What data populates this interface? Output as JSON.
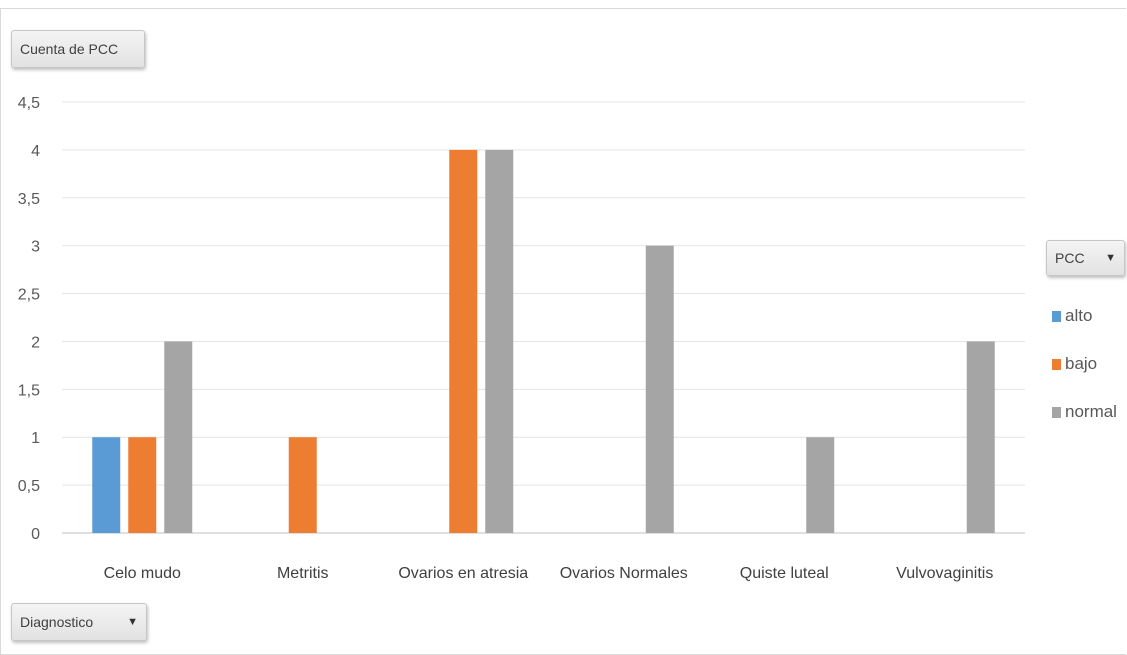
{
  "value_field": {
    "label": "Cuenta de PCC"
  },
  "axis_field": {
    "label": "Diagnostico",
    "caret": "▼"
  },
  "legend_field": {
    "label": "PCC",
    "caret": "▼"
  },
  "legend": [
    {
      "label": "alto",
      "color": "#5b9bd5"
    },
    {
      "label": "bajo",
      "color": "#ed7d31"
    },
    {
      "label": "normal",
      "color": "#a5a5a5"
    }
  ],
  "chart_data": {
    "type": "bar",
    "categories": [
      "Celo mudo",
      "Metritis",
      "Ovarios en atresia",
      "Ovarios Normales",
      "Quiste luteal",
      "Vulvovaginitis"
    ],
    "series": [
      {
        "name": "alto",
        "values": [
          1,
          null,
          null,
          null,
          null,
          null
        ],
        "color": "#5b9bd5"
      },
      {
        "name": "bajo",
        "values": [
          1,
          1,
          4,
          null,
          null,
          null
        ],
        "color": "#ed7d31"
      },
      {
        "name": "normal",
        "values": [
          2,
          null,
          4,
          3,
          1,
          2
        ],
        "color": "#a5a5a5"
      }
    ],
    "ylim": [
      0,
      4.5
    ],
    "yticks": [
      "0",
      "0,5",
      "1",
      "1,5",
      "2",
      "2,5",
      "3",
      "3,5",
      "4",
      "4,5"
    ],
    "grid": true,
    "legend_position": "right"
  }
}
